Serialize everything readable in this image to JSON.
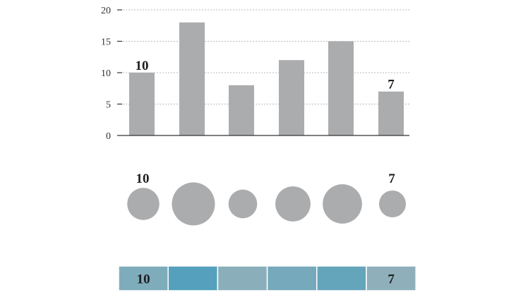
{
  "chart_data": [
    {
      "type": "bar",
      "categories": [
        "",
        "",
        "",
        "",
        "",
        ""
      ],
      "values": [
        10,
        18,
        8,
        12,
        15,
        7
      ],
      "labeled_values": [
        "10",
        "",
        "",
        "",
        "",
        "7"
      ],
      "ylim": [
        0,
        20
      ],
      "yticks": [
        "0",
        "5",
        "10",
        "15",
        "20"
      ],
      "grid": true,
      "bar_color": "#abacae",
      "title": "",
      "xlabel": "",
      "ylabel": ""
    },
    {
      "type": "bubble",
      "values": [
        10,
        18,
        8,
        12,
        15,
        7
      ],
      "labeled_values": [
        "10",
        "",
        "",
        "",
        "",
        "7"
      ],
      "color": "#abacae"
    },
    {
      "type": "heatmap",
      "values": [
        10,
        18,
        8,
        12,
        15,
        7
      ],
      "labeled_values": [
        "10",
        "",
        "",
        "",
        "",
        "7"
      ],
      "color_low": "#8fb0ba",
      "color_high": "#55a1bd"
    }
  ]
}
